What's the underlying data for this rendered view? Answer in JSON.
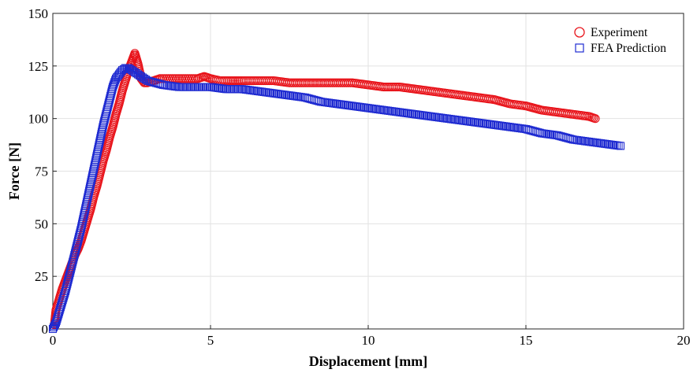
{
  "chart_data": {
    "type": "scatter",
    "xlabel": "Displacement [mm]",
    "ylabel": "Force [N]",
    "xlim": [
      0,
      20
    ],
    "ylim": [
      0,
      150
    ],
    "x_ticks": [
      0,
      5,
      10,
      15,
      20
    ],
    "y_ticks": [
      0,
      25,
      50,
      75,
      100,
      125,
      150
    ],
    "grid": true,
    "legend_position": "top-right",
    "series": [
      {
        "name": "Experiment",
        "marker": "circle",
        "color": "#e8141b",
        "points": [
          [
            0.05,
            2
          ],
          [
            0.1,
            9
          ],
          [
            0.2,
            14
          ],
          [
            0.3,
            19
          ],
          [
            0.4,
            23
          ],
          [
            0.5,
            27
          ],
          [
            0.6,
            31
          ],
          [
            0.7,
            35
          ],
          [
            0.8,
            38
          ],
          [
            0.9,
            42
          ],
          [
            1.0,
            47
          ],
          [
            1.1,
            52
          ],
          [
            1.2,
            57
          ],
          [
            1.3,
            63
          ],
          [
            1.4,
            68
          ],
          [
            1.5,
            74
          ],
          [
            1.6,
            80
          ],
          [
            1.7,
            85
          ],
          [
            1.8,
            91
          ],
          [
            1.9,
            96
          ],
          [
            2.0,
            102
          ],
          [
            2.1,
            107
          ],
          [
            2.2,
            113
          ],
          [
            2.3,
            118
          ],
          [
            2.4,
            123
          ],
          [
            2.5,
            127
          ],
          [
            2.6,
            131
          ],
          [
            2.7,
            126
          ],
          [
            2.8,
            119
          ],
          [
            2.9,
            117
          ],
          [
            3.0,
            117
          ],
          [
            3.2,
            118
          ],
          [
            3.4,
            119
          ],
          [
            3.6,
            119
          ],
          [
            3.8,
            119
          ],
          [
            4.0,
            119
          ],
          [
            4.2,
            119
          ],
          [
            4.4,
            119
          ],
          [
            4.6,
            119
          ],
          [
            4.8,
            120
          ],
          [
            5.0,
            119
          ],
          [
            5.3,
            118
          ],
          [
            5.6,
            118
          ],
          [
            6.0,
            118
          ],
          [
            6.5,
            118
          ],
          [
            7.0,
            118
          ],
          [
            7.5,
            117
          ],
          [
            8.0,
            117
          ],
          [
            8.5,
            117
          ],
          [
            9.0,
            117
          ],
          [
            9.5,
            117
          ],
          [
            10.0,
            116
          ],
          [
            10.5,
            115
          ],
          [
            11.0,
            115
          ],
          [
            11.5,
            114
          ],
          [
            12.0,
            113
          ],
          [
            12.5,
            112
          ],
          [
            13.0,
            111
          ],
          [
            13.5,
            110
          ],
          [
            14.0,
            109
          ],
          [
            14.5,
            107
          ],
          [
            15.0,
            106
          ],
          [
            15.5,
            104
          ],
          [
            16.0,
            103
          ],
          [
            16.5,
            102
          ],
          [
            17.0,
            101
          ],
          [
            17.2,
            100
          ]
        ]
      },
      {
        "name": "FEA Prediction",
        "marker": "square",
        "color": "#1f2bd1",
        "points": [
          [
            0.0,
            0
          ],
          [
            0.1,
            3
          ],
          [
            0.2,
            8
          ],
          [
            0.3,
            13
          ],
          [
            0.4,
            18
          ],
          [
            0.5,
            24
          ],
          [
            0.6,
            30
          ],
          [
            0.7,
            36
          ],
          [
            0.8,
            42
          ],
          [
            0.9,
            48
          ],
          [
            1.0,
            55
          ],
          [
            1.1,
            62
          ],
          [
            1.2,
            69
          ],
          [
            1.3,
            76
          ],
          [
            1.4,
            83
          ],
          [
            1.5,
            90
          ],
          [
            1.6,
            97
          ],
          [
            1.7,
            103
          ],
          [
            1.8,
            109
          ],
          [
            1.9,
            115
          ],
          [
            2.0,
            119
          ],
          [
            2.1,
            121
          ],
          [
            2.2,
            123
          ],
          [
            2.3,
            124
          ],
          [
            2.4,
            124
          ],
          [
            2.5,
            123
          ],
          [
            2.6,
            122
          ],
          [
            2.8,
            120
          ],
          [
            3.0,
            118
          ],
          [
            3.5,
            116
          ],
          [
            4.0,
            115
          ],
          [
            4.5,
            115
          ],
          [
            5.0,
            115
          ],
          [
            5.5,
            114
          ],
          [
            6.0,
            114
          ],
          [
            6.5,
            113
          ],
          [
            7.0,
            112
          ],
          [
            7.5,
            111
          ],
          [
            8.0,
            110
          ],
          [
            8.5,
            108
          ],
          [
            9.0,
            107
          ],
          [
            9.5,
            106
          ],
          [
            10.0,
            105
          ],
          [
            10.5,
            104
          ],
          [
            11.0,
            103
          ],
          [
            11.5,
            102
          ],
          [
            12.0,
            101
          ],
          [
            12.5,
            100
          ],
          [
            13.0,
            99
          ],
          [
            13.5,
            98
          ],
          [
            14.0,
            97
          ],
          [
            14.5,
            96
          ],
          [
            15.0,
            95
          ],
          [
            15.5,
            93
          ],
          [
            16.0,
            92
          ],
          [
            16.5,
            90
          ],
          [
            17.0,
            89
          ],
          [
            17.5,
            88
          ],
          [
            18.0,
            87
          ]
        ]
      }
    ]
  }
}
